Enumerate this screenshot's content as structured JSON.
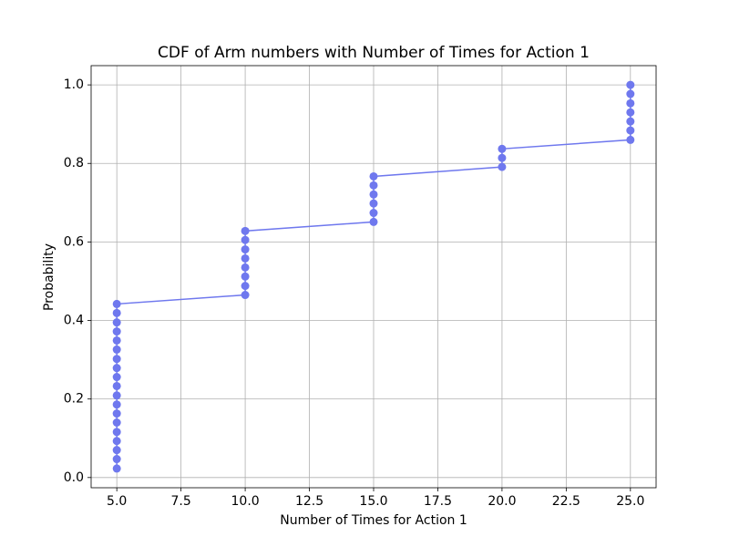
{
  "chart_data": {
    "type": "line",
    "title": "CDF of Arm numbers with Number of Times for Action 1",
    "x_label": "Number of Times for Action 1",
    "y_label": "Probability",
    "x": [
      5,
      5,
      5,
      5,
      5,
      5,
      5,
      5,
      5,
      5,
      5,
      5,
      5,
      5,
      5,
      5,
      5,
      5,
      5,
      10,
      10,
      10,
      10,
      10,
      10,
      10,
      10,
      15,
      15,
      15,
      15,
      15,
      15,
      20,
      20,
      20,
      25,
      25,
      25,
      25,
      25,
      25,
      25
    ],
    "series": [
      {
        "color": "#6f78ee",
        "values": [
          0.023,
          0.047,
          0.07,
          0.093,
          0.116,
          0.14,
          0.163,
          0.186,
          0.209,
          0.233,
          0.256,
          0.279,
          0.302,
          0.326,
          0.349,
          0.372,
          0.395,
          0.419,
          0.442,
          0.465,
          0.488,
          0.512,
          0.535,
          0.558,
          0.581,
          0.605,
          0.628,
          0.651,
          0.674,
          0.698,
          0.721,
          0.744,
          0.767,
          0.791,
          0.814,
          0.837,
          0.86,
          0.884,
          0.907,
          0.93,
          0.953,
          0.977,
          1.0
        ]
      }
    ],
    "xlim": [
      4.0,
      26.0
    ],
    "ylim": [
      -0.026,
      1.049
    ],
    "xticks": [
      {
        "value": 5,
        "label": "5.0"
      },
      7.5,
      {
        "value": 10,
        "label": "10.0"
      },
      12.5,
      {
        "value": 15,
        "label": "15.0"
      },
      17.5,
      {
        "value": 20,
        "label": "20.0"
      },
      22.5,
      {
        "value": 25,
        "label": "25.0"
      }
    ],
    "yticks": [
      {
        "value": 0,
        "label": "0.0"
      },
      0.2,
      0.4,
      0.6,
      0.8,
      {
        "value": 1,
        "label": "1.0"
      }
    ],
    "grid": true,
    "markers": true
  }
}
